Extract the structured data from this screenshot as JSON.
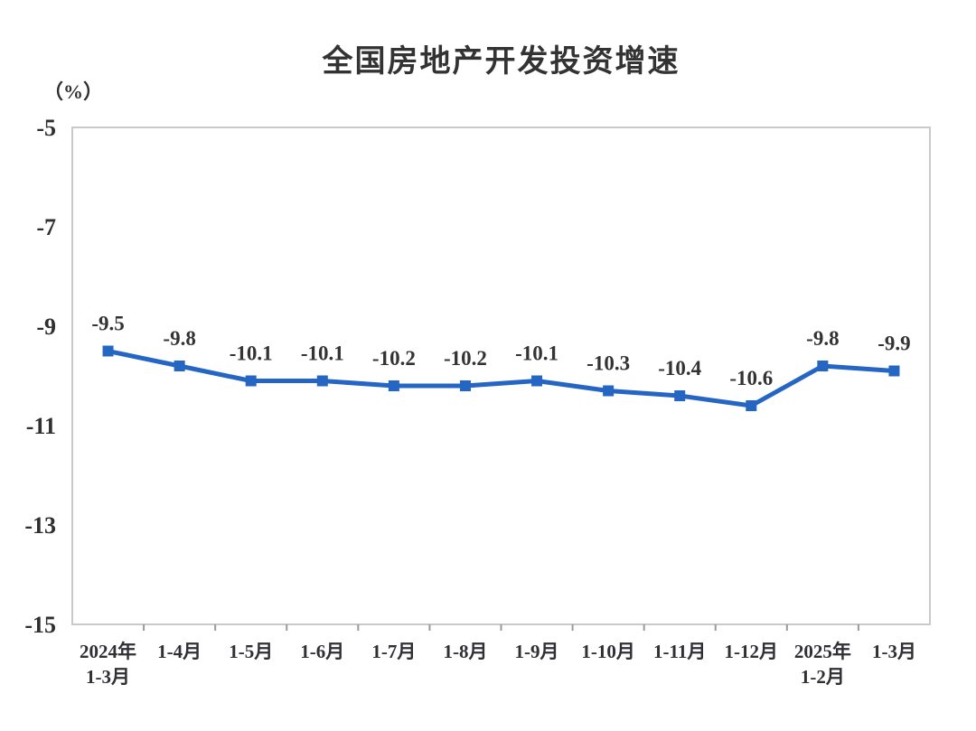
{
  "title": "全国房地产开发投资增速",
  "chart_data": {
    "type": "line",
    "title": "全国房地产开发投资增速",
    "ylabel": "（%）",
    "xlabel": "",
    "categories": [
      [
        "2024年",
        "1-3月"
      ],
      [
        "1-4月"
      ],
      [
        "1-5月"
      ],
      [
        "1-6月"
      ],
      [
        "1-7月"
      ],
      [
        "1-8月"
      ],
      [
        "1-9月"
      ],
      [
        "1-10月"
      ],
      [
        "1-11月"
      ],
      [
        "1-12月"
      ],
      [
        "2025年",
        "1-2月"
      ],
      [
        "1-3月"
      ]
    ],
    "values": [
      -9.5,
      -9.8,
      -10.1,
      -10.1,
      -10.2,
      -10.2,
      -10.1,
      -10.3,
      -10.4,
      -10.6,
      -9.8,
      -9.9
    ],
    "data_labels": [
      "-9.5",
      "-9.8",
      "-10.1",
      "-10.1",
      "-10.2",
      "-10.2",
      "-10.1",
      "-10.3",
      "-10.4",
      "-10.6",
      "-9.8",
      "-9.9"
    ],
    "ylim": [
      -15,
      -5
    ],
    "yticks": [
      -5,
      -7,
      -9,
      -11,
      -13,
      -15
    ],
    "grid": false,
    "legend": "none",
    "marker": "square"
  },
  "colors": {
    "line": "#2565c4",
    "marker": "#2565c4",
    "plot_border": "#c9c9c9",
    "axis_tick": "#9a9a9a",
    "text": "#333333",
    "background": "#ffffff"
  }
}
